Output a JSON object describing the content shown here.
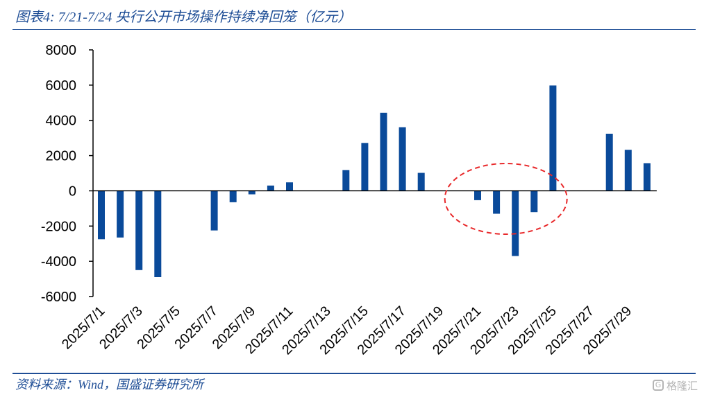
{
  "header": {
    "title": "图表4:  7/21-7/24 央行公开市场操作持续净回笼（亿元）"
  },
  "footer": {
    "source": "资料来源：Wind，国盛证券研究所"
  },
  "watermark": {
    "icon_name": "gelonghui-logo-icon",
    "icon_glyph": "G",
    "text": "格隆汇"
  },
  "colors": {
    "bar": "#0a4a9a",
    "accent": "#1f4e96",
    "highlight_ellipse": "#e8282a"
  },
  "chart_data": {
    "type": "bar",
    "title": "7/21-7/24 央行公开市场操作持续净回笼（亿元）",
    "xlabel": "",
    "ylabel": "",
    "ylim": [
      -6000,
      8000
    ],
    "yticks": [
      8000,
      6000,
      4000,
      2000,
      0,
      -2000,
      -4000,
      -6000
    ],
    "grid": false,
    "legend": "none",
    "categories": [
      "2025/7/1",
      "2025/7/2",
      "2025/7/3",
      "2025/7/4",
      "2025/7/5",
      "2025/7/6",
      "2025/7/7",
      "2025/7/8",
      "2025/7/9",
      "2025/7/10",
      "2025/7/11",
      "2025/7/12",
      "2025/7/13",
      "2025/7/14",
      "2025/7/15",
      "2025/7/16",
      "2025/7/17",
      "2025/7/18",
      "2025/7/19",
      "2025/7/20",
      "2025/7/21",
      "2025/7/22",
      "2025/7/23",
      "2025/7/24",
      "2025/7/25",
      "2025/7/26",
      "2025/7/27",
      "2025/7/28",
      "2025/7/29",
      "2025/7/30"
    ],
    "x_tick_labels": [
      "2025/7/1",
      "2025/7/3",
      "2025/7/5",
      "2025/7/7",
      "2025/7/9",
      "2025/7/11",
      "2025/7/13",
      "2025/7/15",
      "2025/7/17",
      "2025/7/19",
      "2025/7/21",
      "2025/7/23",
      "2025/7/25",
      "2025/7/27",
      "2025/7/29"
    ],
    "values": [
      -2750,
      -2650,
      -4500,
      -4900,
      0,
      0,
      -2250,
      -650,
      -200,
      300,
      480,
      0,
      0,
      1180,
      2720,
      4430,
      3610,
      1020,
      0,
      0,
      -530,
      -1300,
      -3700,
      -1210,
      5980,
      0,
      0,
      3240,
      2330,
      1570
    ],
    "annotations": [
      {
        "type": "ellipse",
        "color": "#e8282a",
        "style": "dashed",
        "around": [
          "2025/7/21",
          "2025/7/24"
        ]
      }
    ]
  }
}
